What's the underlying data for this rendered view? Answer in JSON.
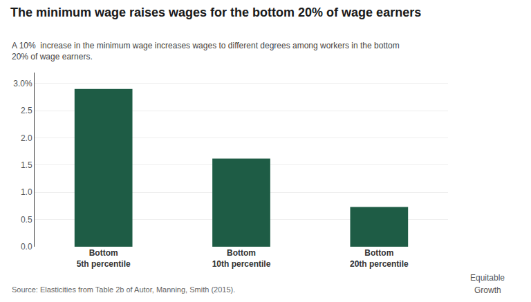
{
  "chart_data": {
    "type": "bar",
    "title": "The minimum wage raises wages for the bottom 20% of wage earners",
    "subtitle": "A 10%  increase in the minimum wage increases wages to different degrees among workers in the bottom\n20% of wage earners.",
    "source": "Source: Elasticities from Table 2b of Autor, Manning, Smith (2015).",
    "annotations": [
      "Equitable",
      "Growth"
    ],
    "categories": [
      "Bottom\n5th percentile",
      "Bottom\n10th percentile",
      "Bottom\n20th percentile"
    ],
    "values": [
      2.9,
      1.62,
      0.73
    ],
    "color": "#1e5c45",
    "ylim": [
      0,
      3.2
    ],
    "yticks": [
      {
        "value": 0.0,
        "label": "0.0"
      },
      0.5,
      {
        "value": 1.0,
        "label": "1.0"
      },
      1.5,
      {
        "value": 2.0,
        "label": "2.0"
      },
      2.5,
      {
        "value": 3.0,
        "label": "3.0%"
      }
    ],
    "grid": true
  }
}
